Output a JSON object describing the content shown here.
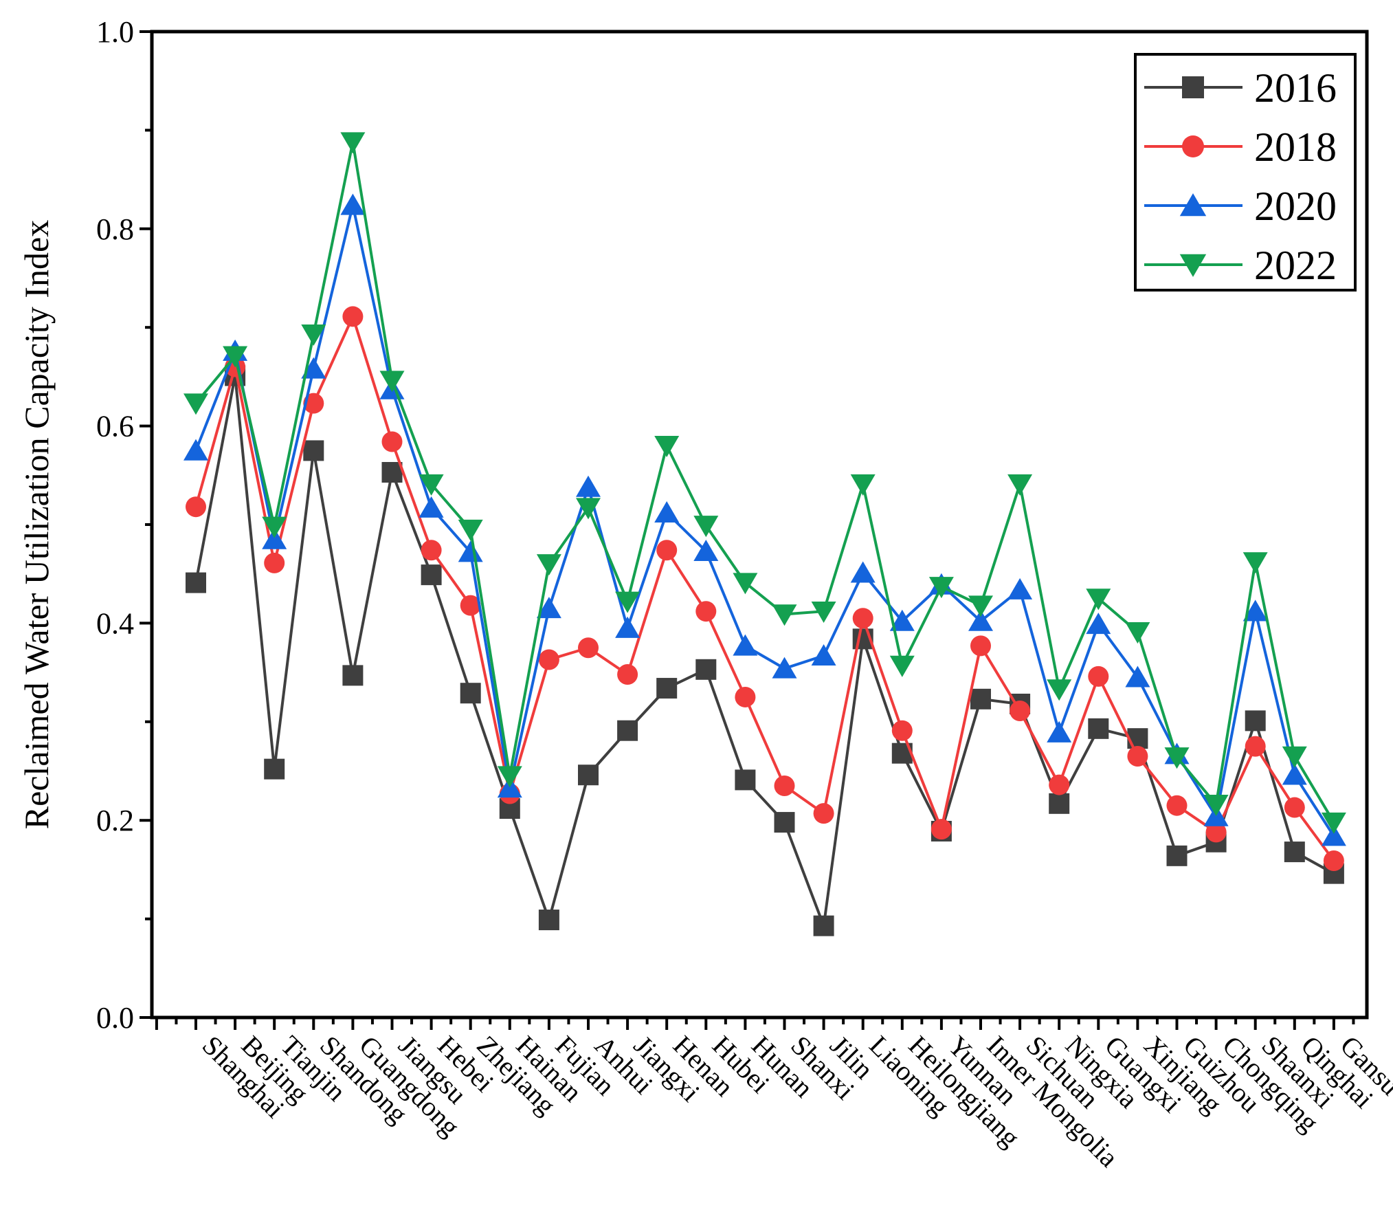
{
  "chart_data": {
    "type": "line",
    "title": "",
    "xlabel": "",
    "ylabel": "Reclaimed Water Utilization Capacity Index",
    "ylim": [
      0.0,
      1.0
    ],
    "yticks": [
      "0.0",
      "0.2",
      "0.4",
      "0.6",
      "0.8",
      "1.0"
    ],
    "grid": false,
    "legend_position": "top-right",
    "categories": [
      "Shanghai",
      "Beijing",
      "Tianjin",
      "Shandong",
      "Guangdong",
      "Jiangsu",
      "Hebei",
      "Zhejiang",
      "Hainan",
      "Fujian",
      "Anhui",
      "Jiangxi",
      "Henan",
      "Hubei",
      "Hunan",
      "Shanxi",
      "Jilin",
      "Liaoning",
      "Heilongjiang",
      "Yunnan",
      "Inner Mongolia",
      "Sichuan",
      "Ningxia",
      "Guangxi",
      "Xinjiang",
      "Guizhou",
      "Chongqing",
      "Shaanxi",
      "Qinghai",
      "Gansu"
    ],
    "series": [
      {
        "name": "2016",
        "color": "#3f3f3f",
        "marker": "square",
        "values": [
          0.441,
          0.651,
          0.252,
          0.575,
          0.347,
          0.553,
          0.449,
          0.329,
          0.212,
          0.099,
          0.246,
          0.291,
          0.334,
          0.353,
          0.241,
          0.198,
          0.093,
          0.384,
          0.268,
          0.189,
          0.323,
          0.318,
          0.217,
          0.293,
          0.283,
          0.164,
          0.178,
          0.301,
          0.168,
          0.146
        ]
      },
      {
        "name": "2018",
        "color": "#f03c3c",
        "marker": "circle",
        "values": [
          0.518,
          0.66,
          0.461,
          0.623,
          0.711,
          0.584,
          0.474,
          0.418,
          0.227,
          0.363,
          0.375,
          0.348,
          0.474,
          0.412,
          0.325,
          0.235,
          0.207,
          0.405,
          0.291,
          0.191,
          0.377,
          0.311,
          0.236,
          0.346,
          0.265,
          0.215,
          0.188,
          0.275,
          0.213,
          0.159
        ]
      },
      {
        "name": "2020",
        "color": "#1464dc",
        "marker": "triangle-up",
        "values": [
          0.575,
          0.676,
          0.485,
          0.658,
          0.824,
          0.637,
          0.517,
          0.472,
          0.233,
          0.415,
          0.538,
          0.395,
          0.512,
          0.473,
          0.377,
          0.354,
          0.367,
          0.451,
          0.402,
          0.439,
          0.402,
          0.434,
          0.289,
          0.399,
          0.345,
          0.267,
          0.204,
          0.412,
          0.246,
          0.184
        ]
      },
      {
        "name": "2022",
        "color": "#14a050",
        "marker": "triangle-down",
        "values": [
          0.623,
          0.671,
          0.498,
          0.693,
          0.888,
          0.646,
          0.541,
          0.495,
          0.245,
          0.46,
          0.517,
          0.422,
          0.58,
          0.499,
          0.441,
          0.409,
          0.412,
          0.541,
          0.357,
          0.437,
          0.418,
          0.541,
          0.333,
          0.425,
          0.391,
          0.264,
          0.216,
          0.462,
          0.265,
          0.198
        ]
      }
    ]
  }
}
